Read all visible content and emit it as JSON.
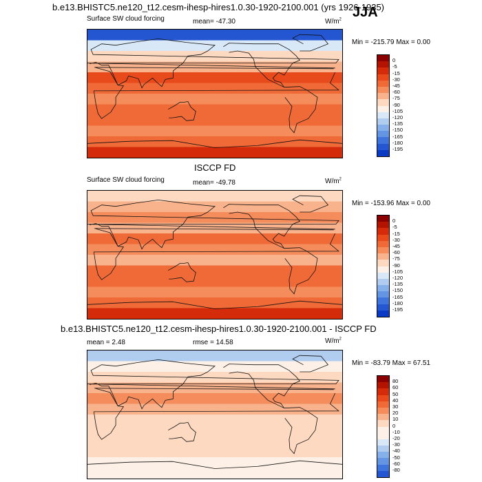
{
  "main_title": "b.e13.BHISTC5.ne120_t12.cesm-ihesp-hires1.0.30-1920-2100.001 (yrs 1926-1935)",
  "season": "JJA",
  "colors": {
    "levels_fill": [
      "#8b0000",
      "#b31400",
      "#d42c0a",
      "#e84a1c",
      "#f06a38",
      "#f48c5c",
      "#f9b38c",
      "#fcd9c0",
      "#fdf0e6",
      "#d9e8f7",
      "#b0cdf0",
      "#86b0ea",
      "#6495e3",
      "#3f74dc",
      "#2456d2",
      "#0a3ac4",
      "#03229e",
      "#051170"
    ],
    "diff_fill": [
      "#8b0000",
      "#b31400",
      "#d42c0a",
      "#e84a1c",
      "#f06a38",
      "#f48c5c",
      "#f9b38c",
      "#fcd9c0",
      "#fdf0e6",
      "#fdf0e6",
      "#d9e8f7",
      "#b0cdf0",
      "#86b0ea",
      "#6495e3",
      "#3f74dc",
      "#2456d2",
      "#0a3ac4",
      "#051170"
    ]
  },
  "chart_data": [
    {
      "type": "heatmap",
      "panel": "model",
      "title": "Surface SW cloud forcing",
      "mean_label": "mean= -47.30",
      "units": "W/m",
      "units_sup": "2",
      "minmax": "Min = -215.79 Max =   0.00",
      "colorbar_levels": [
        "0",
        "-5",
        "-15",
        "-30",
        "-45",
        "-60",
        "-75",
        "-90",
        "-105",
        "-120",
        "-135",
        "-150",
        "-165",
        "-180",
        "-195"
      ],
      "zones": [
        {
          "lat": 90,
          "value": -195
        },
        {
          "lat": 75,
          "value": -120
        },
        {
          "lat": 60,
          "value": -90
        },
        {
          "lat": 45,
          "value": -75
        },
        {
          "lat": 30,
          "value": -30
        },
        {
          "lat": 15,
          "value": -45
        },
        {
          "lat": 0,
          "value": -60
        },
        {
          "lat": -15,
          "value": -45
        },
        {
          "lat": -30,
          "value": -45
        },
        {
          "lat": -45,
          "value": -60
        },
        {
          "lat": -60,
          "value": -45
        },
        {
          "lat": -75,
          "value": -15
        },
        {
          "lat": -90,
          "value": -5
        }
      ]
    },
    {
      "type": "heatmap",
      "panel": "obs",
      "heading": "ISCCP FD",
      "title": "Surface SW cloud forcing",
      "mean_label": "mean= -49.78",
      "units": "W/m",
      "units_sup": "2",
      "minmax": "Min = -153.96 Max =   0.00",
      "colorbar_levels": [
        "0",
        "-5",
        "-15",
        "-30",
        "-45",
        "-60",
        "-75",
        "-90",
        "-105",
        "-120",
        "-135",
        "-150",
        "-165",
        "-180",
        "-195"
      ],
      "zones": [
        {
          "lat": 90,
          "value": -90
        },
        {
          "lat": 75,
          "value": -75
        },
        {
          "lat": 60,
          "value": -60
        },
        {
          "lat": 45,
          "value": -75
        },
        {
          "lat": 30,
          "value": -45
        },
        {
          "lat": 15,
          "value": -60
        },
        {
          "lat": 0,
          "value": -75
        },
        {
          "lat": -15,
          "value": -45
        },
        {
          "lat": -30,
          "value": -45
        },
        {
          "lat": -45,
          "value": -60
        },
        {
          "lat": -60,
          "value": -45
        },
        {
          "lat": -75,
          "value": -15
        },
        {
          "lat": -90,
          "value": -5
        }
      ]
    },
    {
      "type": "heatmap",
      "panel": "difference",
      "heading": "b.e13.BHISTC5.ne120_t12.cesm-ihesp-hires1.0.30-1920-2100.001 - ISCCP FD",
      "mean_label": "mean =   2.48",
      "rmse_label": "rmse =  14.58",
      "units": "W/m",
      "units_sup": "2",
      "minmax": "Min = -83.79 Max =  67.51",
      "colorbar_levels": [
        "80",
        "60",
        "50",
        "40",
        "30",
        "20",
        "10",
        "0",
        "-10",
        "-20",
        "-30",
        "-40",
        "-50",
        "-60",
        "-80"
      ],
      "zones": [
        {
          "lat": 90,
          "value": -40
        },
        {
          "lat": 75,
          "value": -20
        },
        {
          "lat": 60,
          "value": 0
        },
        {
          "lat": 45,
          "value": 10
        },
        {
          "lat": 30,
          "value": 20
        },
        {
          "lat": 15,
          "value": 10
        },
        {
          "lat": 0,
          "value": 0
        },
        {
          "lat": -15,
          "value": 0
        },
        {
          "lat": -30,
          "value": 0
        },
        {
          "lat": -45,
          "value": 0
        },
        {
          "lat": -60,
          "value": -10
        },
        {
          "lat": -75,
          "value": -10
        },
        {
          "lat": -90,
          "value": -10
        }
      ]
    }
  ]
}
